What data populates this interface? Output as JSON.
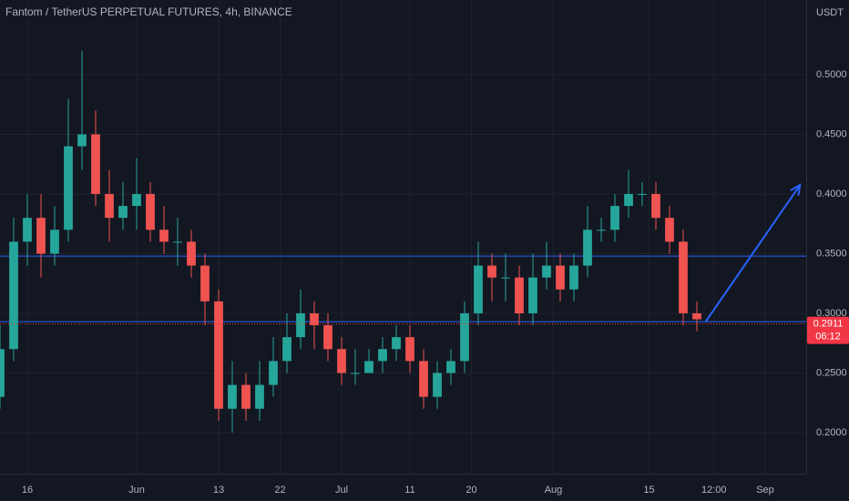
{
  "chart_data": {
    "type": "candlestick",
    "title": "Fantom / TetherUS PERPETUAL FUTURES, 4h, BINANCE",
    "y_axis_label": "USDT",
    "x": [
      -4,
      -2,
      0,
      2,
      4,
      6,
      8,
      10,
      12,
      14,
      16,
      18,
      20,
      22,
      24,
      26,
      28,
      30,
      32,
      34,
      36,
      38,
      40,
      42,
      44,
      46,
      48,
      50,
      52,
      54,
      56,
      58,
      60,
      62,
      64,
      66,
      68,
      70,
      72,
      74,
      76,
      78,
      80,
      82,
      84,
      86,
      88,
      90,
      92,
      94,
      96,
      98
    ],
    "open": [
      0.23,
      0.27,
      0.36,
      0.38,
      0.35,
      0.37,
      0.44,
      0.45,
      0.4,
      0.38,
      0.39,
      0.4,
      0.37,
      0.36,
      0.36,
      0.34,
      0.31,
      0.22,
      0.24,
      0.22,
      0.24,
      0.26,
      0.28,
      0.3,
      0.29,
      0.27,
      0.25,
      0.25,
      0.26,
      0.27,
      0.28,
      0.26,
      0.23,
      0.25,
      0.26,
      0.3,
      0.34,
      0.33,
      0.33,
      0.3,
      0.33,
      0.34,
      0.32,
      0.34,
      0.37,
      0.37,
      0.39,
      0.4,
      0.4,
      0.38,
      0.36,
      0.3
    ],
    "high": [
      0.29,
      0.38,
      0.4,
      0.4,
      0.39,
      0.48,
      0.52,
      0.47,
      0.42,
      0.41,
      0.43,
      0.41,
      0.39,
      0.38,
      0.37,
      0.35,
      0.32,
      0.26,
      0.25,
      0.26,
      0.28,
      0.3,
      0.32,
      0.31,
      0.3,
      0.28,
      0.27,
      0.27,
      0.28,
      0.29,
      0.29,
      0.27,
      0.26,
      0.27,
      0.31,
      0.36,
      0.35,
      0.35,
      0.34,
      0.35,
      0.36,
      0.35,
      0.35,
      0.39,
      0.38,
      0.4,
      0.42,
      0.41,
      0.41,
      0.39,
      0.37,
      0.31
    ],
    "low": [
      0.22,
      0.26,
      0.34,
      0.33,
      0.34,
      0.36,
      0.42,
      0.39,
      0.36,
      0.37,
      0.37,
      0.36,
      0.35,
      0.34,
      0.33,
      0.29,
      0.21,
      0.2,
      0.21,
      0.21,
      0.23,
      0.25,
      0.27,
      0.27,
      0.26,
      0.24,
      0.24,
      0.25,
      0.25,
      0.26,
      0.25,
      0.22,
      0.22,
      0.24,
      0.25,
      0.29,
      0.31,
      0.31,
      0.29,
      0.29,
      0.32,
      0.31,
      0.31,
      0.33,
      0.36,
      0.36,
      0.38,
      0.39,
      0.37,
      0.35,
      0.29,
      0.285
    ],
    "close": [
      0.27,
      0.36,
      0.38,
      0.35,
      0.37,
      0.44,
      0.45,
      0.4,
      0.38,
      0.39,
      0.4,
      0.37,
      0.36,
      0.36,
      0.34,
      0.31,
      0.22,
      0.24,
      0.22,
      0.24,
      0.26,
      0.28,
      0.3,
      0.29,
      0.27,
      0.25,
      0.25,
      0.26,
      0.27,
      0.28,
      0.26,
      0.23,
      0.25,
      0.26,
      0.3,
      0.34,
      0.33,
      0.33,
      0.3,
      0.33,
      0.34,
      0.32,
      0.34,
      0.37,
      0.37,
      0.39,
      0.4,
      0.4,
      0.38,
      0.36,
      0.3,
      0.295
    ],
    "up_color": "#26a69a",
    "down_color": "#ef5350",
    "xlim": [
      -4,
      114
    ],
    "ylim": [
      0.1656,
      0.5626
    ],
    "yticks": [
      {
        "value": 0.2,
        "label": "0.2000"
      },
      {
        "value": 0.25,
        "label": "0.2500"
      },
      {
        "value": 0.3,
        "label": "0.3000"
      },
      {
        "value": 0.35,
        "label": "0.3500"
      },
      {
        "value": 0.4,
        "label": "0.4000"
      },
      {
        "value": 0.45,
        "label": "0.4500"
      },
      {
        "value": 0.5,
        "label": "0.5000"
      }
    ],
    "xticks": [
      {
        "value": 0,
        "label": "16"
      },
      {
        "value": 16,
        "label": "Jun"
      },
      {
        "value": 28,
        "label": "13"
      },
      {
        "value": 37,
        "label": "22"
      },
      {
        "value": 46,
        "label": "Jul"
      },
      {
        "value": 56,
        "label": "11"
      },
      {
        "value": 65,
        "label": "20"
      },
      {
        "value": 77,
        "label": "Aug"
      },
      {
        "value": 91,
        "label": "15"
      },
      {
        "value": 100.5,
        "label": "12:00"
      },
      {
        "value": 108,
        "label": "Sep"
      }
    ],
    "grid": true,
    "levels": [
      {
        "value": 0.348,
        "color": "#2962ff"
      },
      {
        "value": 0.293,
        "color": "#2962ff"
      }
    ],
    "last_price": {
      "value": 0.2911,
      "countdown": "06:12",
      "color": "#f23645"
    },
    "arrow": {
      "x": [
        99.3,
        113.1
      ],
      "y": [
        0.2931,
        0.4076
      ],
      "color": "#2962ff"
    }
  }
}
